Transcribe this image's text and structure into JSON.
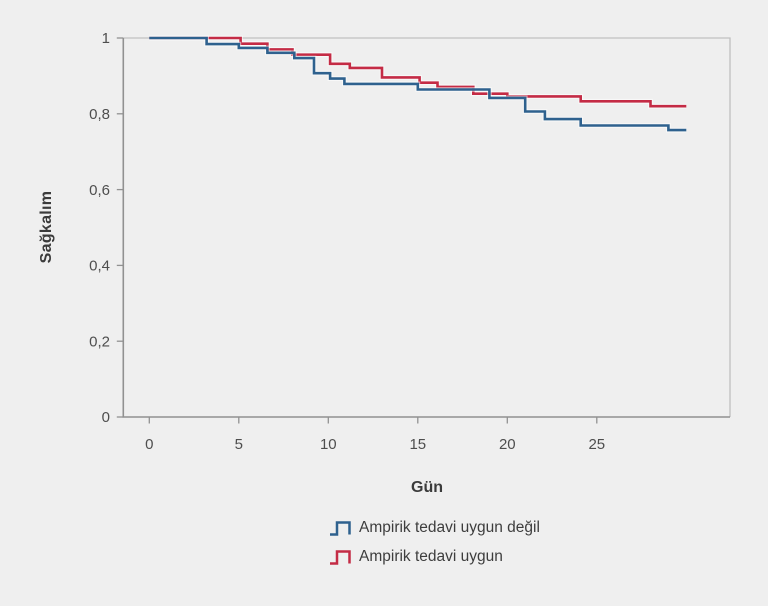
{
  "page": {
    "background_color": "#efefef"
  },
  "chart_data": {
    "type": "line",
    "subtype": "kaplan-meier-step",
    "title": "",
    "xlabel": "Gün",
    "ylabel": "Sağkalım",
    "xlim": [
      -1.5,
      32.5
    ],
    "ylim": [
      0,
      1
    ],
    "x_draw_end": 30,
    "grid": false,
    "legend_position": "bottom-center",
    "x_ticks": [
      {
        "value": 0,
        "label": "0"
      },
      {
        "value": 5,
        "label": "5"
      },
      {
        "value": 10,
        "label": "10"
      },
      {
        "value": 15,
        "label": "15"
      },
      {
        "value": 20,
        "label": "20"
      },
      {
        "value": 25,
        "label": "25"
      }
    ],
    "y_ticks": [
      {
        "value": 1.0,
        "label": "1"
      },
      {
        "value": 0.8,
        "label": "0,8"
      },
      {
        "value": 0.6,
        "label": "0,6"
      },
      {
        "value": 0.4,
        "label": "0,4"
      },
      {
        "value": 0.2,
        "label": "0,2"
      },
      {
        "value": 0.0,
        "label": "0"
      }
    ],
    "colors": {
      "axis": "#919191",
      "box_border": "#c0c0c0",
      "tick_text": "#4e4e4e",
      "label_text": "#3b3b3b",
      "halo": "#ffffff"
    },
    "series": [
      {
        "name": "Ampirik tedavi uygun değil",
        "color": "#2e618e",
        "points": [
          [
            0,
            1.0
          ],
          [
            3.2,
            0.984
          ],
          [
            5.0,
            0.974
          ],
          [
            6.6,
            0.961
          ],
          [
            8.1,
            0.947
          ],
          [
            9.2,
            0.907
          ],
          [
            10.1,
            0.893
          ],
          [
            10.9,
            0.879
          ],
          [
            15.0,
            0.864
          ],
          [
            19.0,
            0.842
          ],
          [
            21.0,
            0.806
          ],
          [
            22.1,
            0.786
          ],
          [
            24.1,
            0.769
          ],
          [
            29.0,
            0.757
          ]
        ]
      },
      {
        "name": "Ampirik tedavi uygun",
        "color": "#c42b45",
        "points": [
          [
            0,
            1.0
          ],
          [
            5.1,
            0.985
          ],
          [
            6.6,
            0.97
          ],
          [
            8.0,
            0.956
          ],
          [
            10.1,
            0.932
          ],
          [
            11.2,
            0.921
          ],
          [
            13.0,
            0.896
          ],
          [
            15.1,
            0.882
          ],
          [
            16.1,
            0.871
          ],
          [
            18.1,
            0.853
          ],
          [
            20.0,
            0.846
          ],
          [
            24.1,
            0.833
          ],
          [
            28.0,
            0.82
          ]
        ]
      }
    ]
  }
}
